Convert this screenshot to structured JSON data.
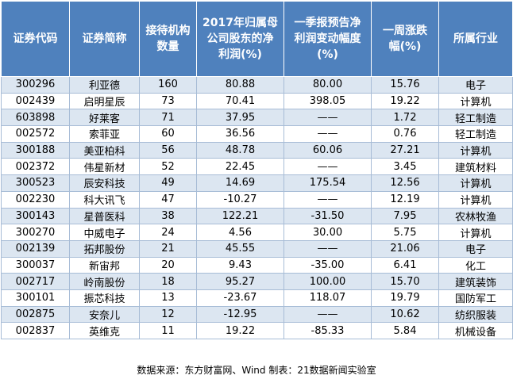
{
  "table": {
    "headers": [
      [
        "证券代码"
      ],
      [
        "证券简称"
      ],
      [
        "接待机构",
        "数量"
      ],
      [
        "2017年归属母",
        "公司股东的净",
        "利润(%)"
      ],
      [
        "一季报预告净",
        "利润变动幅度",
        "(%)"
      ],
      [
        "一周涨跌",
        "幅(%)"
      ],
      [
        "所属行业"
      ]
    ],
    "rows": [
      [
        "300296",
        "利亚德",
        "160",
        "80.88",
        "80.00",
        "15.76",
        "电子"
      ],
      [
        "002439",
        "启明星辰",
        "73",
        "70.41",
        "398.05",
        "19.22",
        "计算机"
      ],
      [
        "603898",
        "好莱客",
        "71",
        "37.95",
        "——",
        "1.72",
        "轻工制造"
      ],
      [
        "002572",
        "索菲亚",
        "60",
        "36.56",
        "——",
        "0.76",
        "轻工制造"
      ],
      [
        "300188",
        "美亚柏科",
        "56",
        "48.78",
        "60.06",
        "27.21",
        "计算机"
      ],
      [
        "002372",
        "伟星新材",
        "52",
        "22.45",
        "——",
        "3.45",
        "建筑材料"
      ],
      [
        "300523",
        "辰安科技",
        "49",
        "14.69",
        "175.54",
        "12.56",
        "计算机"
      ],
      [
        "002230",
        "科大讯飞",
        "47",
        "-10.27",
        "——",
        "12.19",
        "计算机"
      ],
      [
        "300143",
        "星普医科",
        "38",
        "122.21",
        "-31.50",
        "7.95",
        "农林牧渔"
      ],
      [
        "300270",
        "中威电子",
        "24",
        "4.56",
        "30.00",
        "5.75",
        "计算机"
      ],
      [
        "002139",
        "拓邦股份",
        "21",
        "45.55",
        "——",
        "21.06",
        "电子"
      ],
      [
        "300037",
        "新宙邦",
        "20",
        "9.43",
        "-35.00",
        "6.41",
        "化工"
      ],
      [
        "002717",
        "岭南股份",
        "18",
        "95.27",
        "100.00",
        "15.70",
        "建筑装饰"
      ],
      [
        "300101",
        "振芯科技",
        "13",
        "-23.67",
        "118.07",
        "19.79",
        "国防军工"
      ],
      [
        "002875",
        "安奈儿",
        "12",
        "-12.95",
        "——",
        "10.62",
        "纺织服装"
      ],
      [
        "002837",
        "英维克",
        "11",
        "19.22",
        "-85.33",
        "5.84",
        "机械设备"
      ]
    ]
  },
  "footer": {
    "text": "数据来源：东方财富网、Wind  制表：21数据新闻实验室"
  },
  "colors": {
    "header_bg": "#4f81bd",
    "header_text": "#ffffff",
    "row_alt_bg": "#dce6f1",
    "row_bg": "#ffffff"
  }
}
